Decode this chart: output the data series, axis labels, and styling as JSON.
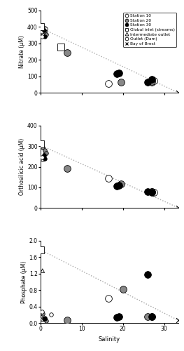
{
  "nitrate": {
    "station10_small": {
      "x": [
        0.3,
        0.5,
        1.0,
        1.2
      ],
      "y": [
        370,
        350,
        395,
        390
      ]
    },
    "station10_large": {
      "x": [
        16.5,
        27.0,
        27.5
      ],
      "y": [
        55,
        65,
        75
      ]
    },
    "station20_small": {
      "x": [
        0.5,
        1.0,
        1.3
      ],
      "y": [
        390,
        370,
        355
      ]
    },
    "station20_large": {
      "x": [
        6.5,
        19.5,
        27.0
      ],
      "y": [
        245,
        65,
        70
      ]
    },
    "station30_small": {
      "x": [
        0.8,
        1.1
      ],
      "y": [
        380,
        340
      ]
    },
    "station30_large": {
      "x": [
        18.5,
        19.0,
        26.0,
        27.0
      ],
      "y": [
        115,
        120,
        65,
        80
      ]
    },
    "global_inlet": {
      "x": [
        0.1,
        5.0
      ],
      "y": [
        400,
        280
      ]
    },
    "outlet_dam": {
      "x": [
        0.4
      ],
      "y": [
        340
      ]
    },
    "bay_of_brest": {
      "x": [
        33.5
      ],
      "y": [
        0
      ]
    },
    "mixing_line": {
      "x": [
        0.0,
        33.5
      ],
      "y": [
        395,
        0
      ]
    },
    "ylim": [
      0,
      500
    ],
    "yticks": [
      0,
      100,
      200,
      300,
      400,
      500
    ],
    "ylabel": "Nitrate (μM)"
  },
  "silicic": {
    "station10_small": {
      "x": [
        0.3,
        0.5,
        1.0,
        1.2
      ],
      "y": [
        240,
        235,
        260,
        270
      ]
    },
    "station10_large": {
      "x": [
        16.5,
        27.0,
        27.5
      ],
      "y": [
        145,
        80,
        75
      ]
    },
    "station20_small": {
      "x": [
        0.5,
        1.0,
        1.3
      ],
      "y": [
        295,
        280,
        265
      ]
    },
    "station20_large": {
      "x": [
        6.5,
        19.5,
        27.0
      ],
      "y": [
        190,
        115,
        80
      ]
    },
    "station30_small": {
      "x": [
        0.8,
        1.1
      ],
      "y": [
        255,
        240
      ]
    },
    "station30_large": {
      "x": [
        18.5,
        19.0,
        26.0,
        27.0
      ],
      "y": [
        105,
        110,
        80,
        75
      ]
    },
    "global_inlet": {
      "x": [
        0.1
      ],
      "y": [
        310
      ]
    },
    "outlet_dam": {
      "x": [
        0.4
      ],
      "y": [
        245
      ]
    },
    "bay_of_brest": {
      "x": [
        33.5
      ],
      "y": [
        0
      ]
    },
    "mixing_line": {
      "x": [
        0.0,
        33.5
      ],
      "y": [
        305,
        0
      ]
    },
    "ylim": [
      0,
      400
    ],
    "yticks": [
      0,
      100,
      200,
      300,
      400
    ],
    "ylabel": "Orthosilicic acid (μM)"
  },
  "phosphate": {
    "station10_small": {
      "x": [
        0.3,
        0.5,
        1.0,
        2.5
      ],
      "y": [
        0.1,
        0.08,
        0.12,
        0.2
      ]
    },
    "station10_large": {
      "x": [
        16.5,
        27.0
      ],
      "y": [
        0.6,
        0.15
      ]
    },
    "station20_small": {
      "x": [
        0.5,
        1.0,
        1.3
      ],
      "y": [
        0.22,
        0.1,
        0.05
      ]
    },
    "station20_large": {
      "x": [
        6.5,
        20.0,
        26.0
      ],
      "y": [
        0.07,
        0.82,
        0.15
      ]
    },
    "station30_small": {
      "x": [
        0.8,
        1.1
      ],
      "y": [
        0.1,
        0.1
      ]
    },
    "station30_large": {
      "x": [
        18.5,
        19.0,
        26.0,
        27.0
      ],
      "y": [
        0.14,
        0.16,
        1.18,
        0.16
      ]
    },
    "global_inlet": {
      "x": [
        0.1
      ],
      "y": [
        1.78
      ]
    },
    "intermediate_outlet": {
      "x": [
        0.5
      ],
      "y": [
        1.27
      ]
    },
    "outlet_dam": {
      "x": [
        0.4
      ],
      "y": [
        0.28
      ]
    },
    "bay_of_brest": {
      "x": [
        33.5
      ],
      "y": [
        0.06
      ]
    },
    "mixing_line": {
      "x": [
        0.0,
        33.5
      ],
      "y": [
        1.78,
        0.06
      ]
    },
    "ylim": [
      0,
      2.0
    ],
    "yticks": [
      0.0,
      0.4,
      0.8,
      1.2,
      1.6,
      2.0
    ],
    "ylabel": "Phosphate (μM)"
  },
  "colors": {
    "station10": "#ffffff",
    "station10_edge": "#000000",
    "station20": "#888888",
    "station20_edge": "#000000",
    "station30": "#000000",
    "station30_edge": "#000000",
    "global_inlet": "#ffffff",
    "global_inlet_edge": "#000000",
    "bay_of_brest": "#000000",
    "mixing_line": "#aaaaaa"
  },
  "small_marker_size": 4,
  "large_marker_size": 7,
  "xlim": [
    0,
    33.5
  ],
  "xticks": [
    0,
    10,
    20,
    30
  ],
  "xlabel": "Salinity"
}
